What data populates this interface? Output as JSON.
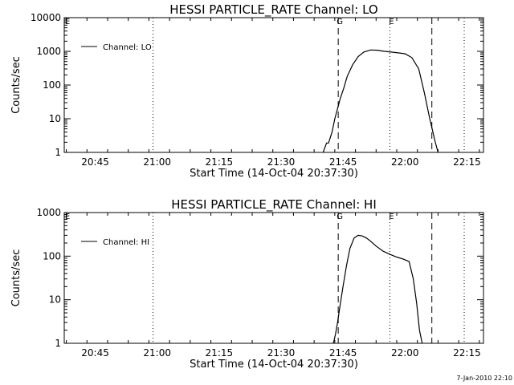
{
  "footer": "7-Jan-2010 22:10",
  "chart_data": [
    {
      "type": "line",
      "title": "HESSI PARTICLE_RATE Channel: LO",
      "xlabel": "Start Time (14-Oct-04 20:37:30)",
      "ylabel": "Counts/sec",
      "yscale": "log",
      "ylim": [
        1,
        10000
      ],
      "y_ticks": [
        "1",
        "10",
        "100",
        "1000",
        "10000"
      ],
      "xlim": [
        "20:37:30",
        "22:19:00"
      ],
      "x_ticks": [
        "20:45",
        "21:00",
        "21:15",
        "21:30",
        "21:45",
        "22:00",
        "22:15"
      ],
      "legend": {
        "entries": [
          "Channel: LO"
        ],
        "placement": "top-left"
      },
      "series": [
        {
          "name": "Channel: LO",
          "x": [
            "21:40:10",
            "21:41:00",
            "21:41:30",
            "21:42:20",
            "21:43:00",
            "21:43:40",
            "21:44:20",
            "21:45:10",
            "21:46:00",
            "21:47:20",
            "21:48:40",
            "21:50:00",
            "21:51:40",
            "21:53:20",
            "21:55:00",
            "21:56:40",
            "21:58:20",
            "22:00:00",
            "22:01:40",
            "22:03:20",
            "22:04:40",
            "22:06:00",
            "22:07:20",
            "22:08:00"
          ],
          "y": [
            1,
            1.9,
            1.9,
            4,
            10,
            20,
            40,
            80,
            180,
            400,
            700,
            950,
            1100,
            1080,
            1000,
            950,
            900,
            850,
            650,
            300,
            60,
            10,
            2,
            1
          ]
        }
      ],
      "vertical_lines": [
        {
          "x": "20:59:00",
          "style": "dotted"
        },
        {
          "x": "21:43:50",
          "style": "dashed",
          "label": "G"
        },
        {
          "x": "21:56:20",
          "style": "dotted",
          "label": "E"
        },
        {
          "x": "22:06:30",
          "style": "dashed"
        },
        {
          "x": "22:14:20",
          "style": "dotted"
        }
      ],
      "markers": [
        {
          "label": "E",
          "position": "top-left"
        }
      ]
    },
    {
      "type": "line",
      "title": "HESSI PARTICLE_RATE Channel: HI",
      "xlabel": "Start Time (14-Oct-04 20:37:30)",
      "ylabel": "Counts/sec",
      "yscale": "log",
      "ylim": [
        1,
        1000
      ],
      "y_ticks": [
        "1",
        "10",
        "100",
        "1000"
      ],
      "xlim": [
        "20:37:30",
        "22:19:00"
      ],
      "x_ticks": [
        "20:45",
        "21:00",
        "21:15",
        "21:30",
        "21:45",
        "22:00",
        "22:15"
      ],
      "legend": {
        "entries": [
          "Channel: HI"
        ],
        "placement": "top-left"
      },
      "series": [
        {
          "name": "Channel: HI",
          "x": [
            "21:42:40",
            "21:43:10",
            "21:43:40",
            "21:44:20",
            "21:45:00",
            "21:45:50",
            "21:46:40",
            "21:47:40",
            "21:48:40",
            "21:49:40",
            "21:50:40",
            "21:51:40",
            "21:53:00",
            "21:54:40",
            "21:56:20",
            "21:58:00",
            "21:59:40",
            "22:01:00",
            "22:02:00",
            "22:02:50",
            "22:03:30",
            "22:04:10"
          ],
          "y": [
            1,
            1.6,
            3,
            8,
            20,
            60,
            150,
            260,
            300,
            290,
            260,
            220,
            170,
            130,
            110,
            95,
            85,
            75,
            30,
            8,
            2,
            1
          ]
        }
      ],
      "vertical_lines": [
        {
          "x": "20:59:00",
          "style": "dotted"
        },
        {
          "x": "21:43:50",
          "style": "dashed",
          "label": "G"
        },
        {
          "x": "21:56:20",
          "style": "dotted",
          "label": "E"
        },
        {
          "x": "22:06:30",
          "style": "dashed"
        },
        {
          "x": "22:14:20",
          "style": "dotted"
        }
      ],
      "markers": [
        {
          "label": "E",
          "position": "top-left"
        }
      ]
    }
  ]
}
